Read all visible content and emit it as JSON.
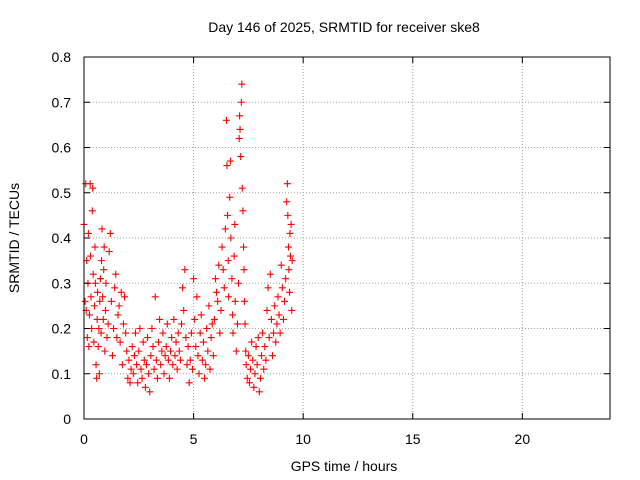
{
  "chart_data": {
    "type": "scatter",
    "title": "Day 146 of 2025, SRMTID for receiver ske8",
    "xlabel": "GPS time / hours",
    "ylabel": "SRMTID / TECUs",
    "xlim": [
      0,
      24
    ],
    "ylim": [
      0,
      0.8
    ],
    "xticks": [
      0,
      5,
      10,
      15,
      20
    ],
    "yticks": [
      0,
      0.1,
      0.2,
      0.3,
      0.4,
      0.5,
      0.6,
      0.7,
      0.8
    ],
    "xtick_labels": [
      "0",
      "5",
      "10",
      "15",
      "20"
    ],
    "ytick_labels": [
      "0",
      "0.1",
      "0.2",
      "0.3",
      "0.4",
      "0.5",
      "0.6",
      "0.7",
      "0.8"
    ],
    "grid": true,
    "marker": "+",
    "color": "#ff0000",
    "series": [
      {
        "name": "SRMTID",
        "points": [
          [
            0.0,
            0.43
          ],
          [
            0.05,
            0.26
          ],
          [
            0.08,
            0.52
          ],
          [
            0.1,
            0.24
          ],
          [
            0.12,
            0.35
          ],
          [
            0.15,
            0.18
          ],
          [
            0.18,
            0.3
          ],
          [
            0.2,
            0.41
          ],
          [
            0.22,
            0.16
          ],
          [
            0.25,
            0.23
          ],
          [
            0.28,
            0.52
          ],
          [
            0.3,
            0.36
          ],
          [
            0.32,
            0.27
          ],
          [
            0.35,
            0.2
          ],
          [
            0.38,
            0.46
          ],
          [
            0.4,
            0.51
          ],
          [
            0.42,
            0.32
          ],
          [
            0.45,
            0.17
          ],
          [
            0.48,
            0.25
          ],
          [
            0.5,
            0.38
          ],
          [
            0.52,
            0.3
          ],
          [
            0.55,
            0.12
          ],
          [
            0.58,
            0.09
          ],
          [
            0.6,
            0.22
          ],
          [
            0.62,
            0.28
          ],
          [
            0.65,
            0.16
          ],
          [
            0.68,
            0.2
          ],
          [
            0.7,
            0.1
          ],
          [
            0.72,
            0.26
          ],
          [
            0.75,
            0.31
          ],
          [
            0.78,
            0.19
          ],
          [
            0.8,
            0.35
          ],
          [
            0.82,
            0.42
          ],
          [
            0.85,
            0.27
          ],
          [
            0.88,
            0.22
          ],
          [
            0.9,
            0.33
          ],
          [
            0.92,
            0.38
          ],
          [
            0.95,
            0.15
          ],
          [
            0.98,
            0.24
          ],
          [
            1.0,
            0.3
          ],
          [
            1.05,
            0.18
          ],
          [
            1.1,
            0.21
          ],
          [
            1.15,
            0.37
          ],
          [
            1.2,
            0.41
          ],
          [
            1.25,
            0.26
          ],
          [
            1.3,
            0.14
          ],
          [
            1.35,
            0.2
          ],
          [
            1.4,
            0.29
          ],
          [
            1.45,
            0.32
          ],
          [
            1.5,
            0.18
          ],
          [
            1.55,
            0.23
          ],
          [
            1.6,
            0.25
          ],
          [
            1.65,
            0.17
          ],
          [
            1.7,
            0.28
          ],
          [
            1.75,
            0.12
          ],
          [
            1.8,
            0.21
          ],
          [
            1.85,
            0.27
          ],
          [
            1.9,
            0.19
          ],
          [
            1.95,
            0.15
          ],
          [
            2.0,
            0.09
          ],
          [
            2.05,
            0.13
          ],
          [
            2.1,
            0.08
          ],
          [
            2.15,
            0.11
          ],
          [
            2.2,
            0.16
          ],
          [
            2.25,
            0.1
          ],
          [
            2.3,
            0.14
          ],
          [
            2.35,
            0.19
          ],
          [
            2.4,
            0.12
          ],
          [
            2.45,
            0.08
          ],
          [
            2.5,
            0.15
          ],
          [
            2.55,
            0.2
          ],
          [
            2.6,
            0.11
          ],
          [
            2.65,
            0.09
          ],
          [
            2.7,
            0.17
          ],
          [
            2.75,
            0.13
          ],
          [
            2.8,
            0.07
          ],
          [
            2.85,
            0.12
          ],
          [
            2.9,
            0.18
          ],
          [
            2.95,
            0.1
          ],
          [
            3.0,
            0.06
          ],
          [
            3.05,
            0.14
          ],
          [
            3.1,
            0.2
          ],
          [
            3.15,
            0.16
          ],
          [
            3.2,
            0.11
          ],
          [
            3.25,
            0.27
          ],
          [
            3.3,
            0.13
          ],
          [
            3.35,
            0.09
          ],
          [
            3.4,
            0.17
          ],
          [
            3.45,
            0.22
          ],
          [
            3.5,
            0.12
          ],
          [
            3.55,
            0.15
          ],
          [
            3.6,
            0.19
          ],
          [
            3.65,
            0.1
          ],
          [
            3.7,
            0.14
          ],
          [
            3.75,
            0.16
          ],
          [
            3.8,
            0.21
          ],
          [
            3.85,
            0.13
          ],
          [
            3.9,
            0.09
          ],
          [
            3.95,
            0.15
          ],
          [
            4.0,
            0.18
          ],
          [
            4.05,
            0.12
          ],
          [
            4.1,
            0.22
          ],
          [
            4.15,
            0.14
          ],
          [
            4.2,
            0.17
          ],
          [
            4.25,
            0.11
          ],
          [
            4.3,
            0.19
          ],
          [
            4.35,
            0.15
          ],
          [
            4.4,
            0.13
          ],
          [
            4.45,
            0.21
          ],
          [
            4.5,
            0.29
          ],
          [
            4.55,
            0.24
          ],
          [
            4.6,
            0.33
          ],
          [
            4.65,
            0.18
          ],
          [
            4.7,
            0.12
          ],
          [
            4.75,
            0.16
          ],
          [
            4.8,
            0.08
          ],
          [
            4.85,
            0.13
          ],
          [
            4.9,
            0.19
          ],
          [
            4.95,
            0.11
          ],
          [
            5.0,
            0.31
          ],
          [
            5.05,
            0.22
          ],
          [
            5.1,
            0.16
          ],
          [
            5.15,
            0.27
          ],
          [
            5.2,
            0.14
          ],
          [
            5.25,
            0.1
          ],
          [
            5.3,
            0.19
          ],
          [
            5.35,
            0.23
          ],
          [
            5.4,
            0.13
          ],
          [
            5.45,
            0.17
          ],
          [
            5.5,
            0.09
          ],
          [
            5.55,
            0.12
          ],
          [
            5.6,
            0.2
          ],
          [
            5.65,
            0.15
          ],
          [
            5.7,
            0.25
          ],
          [
            5.75,
            0.11
          ],
          [
            5.8,
            0.18
          ],
          [
            5.85,
            0.21
          ],
          [
            5.9,
            0.14
          ],
          [
            5.95,
            0.22
          ],
          [
            6.0,
            0.31
          ],
          [
            6.05,
            0.28
          ],
          [
            6.1,
            0.26
          ],
          [
            6.15,
            0.34
          ],
          [
            6.2,
            0.19
          ],
          [
            6.25,
            0.24
          ],
          [
            6.3,
            0.38
          ],
          [
            6.35,
            0.33
          ],
          [
            6.4,
            0.29
          ],
          [
            6.45,
            0.42
          ],
          [
            6.5,
            0.66
          ],
          [
            6.52,
            0.56
          ],
          [
            6.55,
            0.45
          ],
          [
            6.58,
            0.35
          ],
          [
            6.6,
            0.27
          ],
          [
            6.65,
            0.49
          ],
          [
            6.68,
            0.57
          ],
          [
            6.7,
            0.4
          ],
          [
            6.75,
            0.31
          ],
          [
            6.78,
            0.23
          ],
          [
            6.8,
            0.19
          ],
          [
            6.85,
            0.36
          ],
          [
            6.88,
            0.43
          ],
          [
            6.9,
            0.26
          ],
          [
            6.95,
            0.15
          ],
          [
            7.0,
            0.21
          ],
          [
            7.05,
            0.3
          ],
          [
            7.08,
            0.62
          ],
          [
            7.1,
            0.67
          ],
          [
            7.12,
            0.64
          ],
          [
            7.15,
            0.58
          ],
          [
            7.18,
            0.7
          ],
          [
            7.2,
            0.74
          ],
          [
            7.22,
            0.51
          ],
          [
            7.25,
            0.46
          ],
          [
            7.28,
            0.38
          ],
          [
            7.3,
            0.33
          ],
          [
            7.32,
            0.26
          ],
          [
            7.35,
            0.21
          ],
          [
            7.38,
            0.15
          ],
          [
            7.4,
            0.12
          ],
          [
            7.45,
            0.09
          ],
          [
            7.5,
            0.14
          ],
          [
            7.55,
            0.08
          ],
          [
            7.6,
            0.11
          ],
          [
            7.65,
            0.17
          ],
          [
            7.7,
            0.13
          ],
          [
            7.75,
            0.07
          ],
          [
            7.8,
            0.1
          ],
          [
            7.85,
            0.16
          ],
          [
            7.9,
            0.12
          ],
          [
            7.95,
            0.18
          ],
          [
            8.0,
            0.06
          ],
          [
            8.05,
            0.09
          ],
          [
            8.1,
            0.14
          ],
          [
            8.15,
            0.19
          ],
          [
            8.2,
            0.11
          ],
          [
            8.25,
            0.16
          ],
          [
            8.3,
            0.13
          ],
          [
            8.35,
            0.24
          ],
          [
            8.4,
            0.29
          ],
          [
            8.45,
            0.18
          ],
          [
            8.5,
            0.32
          ],
          [
            8.55,
            0.22
          ],
          [
            8.6,
            0.14
          ],
          [
            8.65,
            0.19
          ],
          [
            8.7,
            0.25
          ],
          [
            8.75,
            0.17
          ],
          [
            8.8,
            0.21
          ],
          [
            8.85,
            0.27
          ],
          [
            8.9,
            0.23
          ],
          [
            8.95,
            0.19
          ],
          [
            9.0,
            0.34
          ],
          [
            9.05,
            0.29
          ],
          [
            9.1,
            0.22
          ],
          [
            9.15,
            0.26
          ],
          [
            9.2,
            0.31
          ],
          [
            9.25,
            0.48
          ],
          [
            9.28,
            0.52
          ],
          [
            9.3,
            0.45
          ],
          [
            9.33,
            0.38
          ],
          [
            9.35,
            0.33
          ],
          [
            9.38,
            0.28
          ],
          [
            9.4,
            0.41
          ],
          [
            9.42,
            0.36
          ],
          [
            9.45,
            0.43
          ],
          [
            9.48,
            0.24
          ],
          [
            9.5,
            0.35
          ]
        ]
      }
    ]
  }
}
